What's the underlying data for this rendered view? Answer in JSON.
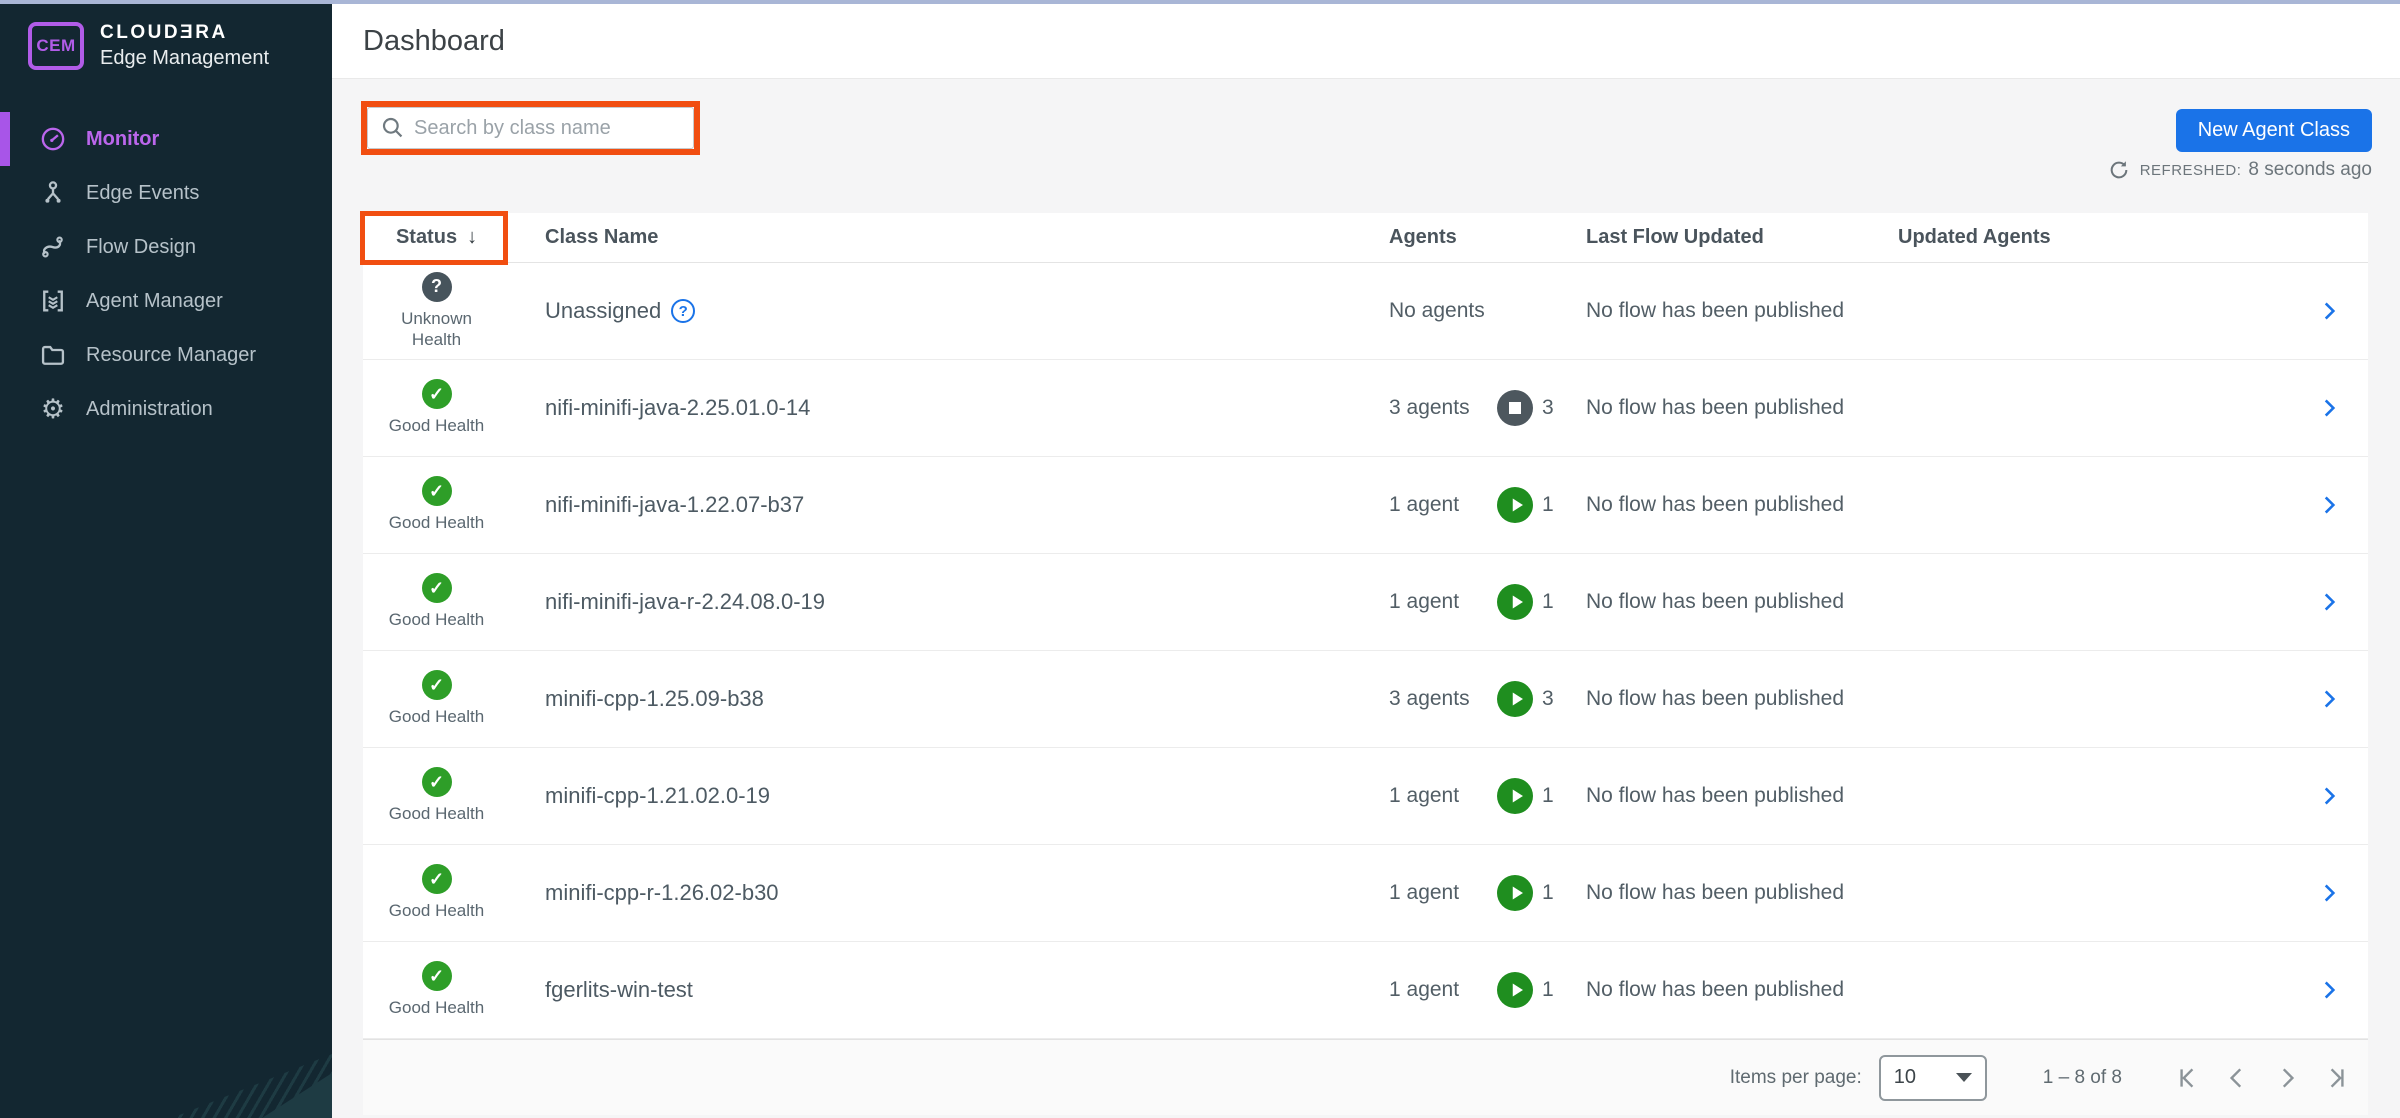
{
  "brand": {
    "badge": "CEM",
    "line1": "CLOUDƎRA",
    "line2": "Edge Management"
  },
  "sidebar": {
    "items": [
      {
        "label": "Monitor",
        "icon": "gauge-icon",
        "active": true
      },
      {
        "label": "Edge Events",
        "icon": "edge-events-icon",
        "active": false
      },
      {
        "label": "Flow Design",
        "icon": "flow-design-icon",
        "active": false
      },
      {
        "label": "Agent Manager",
        "icon": "agent-manager-icon",
        "active": false
      },
      {
        "label": "Resource Manager",
        "icon": "folder-icon",
        "active": false
      },
      {
        "label": "Administration",
        "icon": "gear-icon",
        "active": false
      }
    ]
  },
  "header": {
    "title": "Dashboard"
  },
  "toolbar": {
    "search_placeholder": "Search by class name",
    "new_agent_class_label": "New Agent Class",
    "refreshed_label": "REFRESHED:",
    "refreshed_value": "8 seconds ago"
  },
  "table": {
    "columns": {
      "status": "Status",
      "class_name": "Class Name",
      "agents": "Agents",
      "last_flow_updated": "Last Flow Updated",
      "updated_agents": "Updated Agents"
    },
    "sort": {
      "column": "Status",
      "direction": "descending"
    },
    "rows": [
      {
        "health": "unknown",
        "health_label": "Unknown Health",
        "class_name": "Unassigned",
        "help": true,
        "agents_text": "No agents",
        "badge": null,
        "flow": "No flow has been published",
        "updated_agents": ""
      },
      {
        "health": "good",
        "health_label": "Good Health",
        "class_name": "nifi-minifi-java-2.25.01.0-14",
        "help": false,
        "agents_text": "3 agents",
        "badge": {
          "type": "stopped",
          "count": "3"
        },
        "flow": "No flow has been published",
        "updated_agents": ""
      },
      {
        "health": "good",
        "health_label": "Good Health",
        "class_name": "nifi-minifi-java-1.22.07-b37",
        "help": false,
        "agents_text": "1 agent",
        "badge": {
          "type": "running",
          "count": "1"
        },
        "flow": "No flow has been published",
        "updated_agents": ""
      },
      {
        "health": "good",
        "health_label": "Good Health",
        "class_name": "nifi-minifi-java-r-2.24.08.0-19",
        "help": false,
        "agents_text": "1 agent",
        "badge": {
          "type": "running",
          "count": "1"
        },
        "flow": "No flow has been published",
        "updated_agents": ""
      },
      {
        "health": "good",
        "health_label": "Good Health",
        "class_name": "minifi-cpp-1.25.09-b38",
        "help": false,
        "agents_text": "3 agents",
        "badge": {
          "type": "running",
          "count": "3"
        },
        "flow": "No flow has been published",
        "updated_agents": ""
      },
      {
        "health": "good",
        "health_label": "Good Health",
        "class_name": "minifi-cpp-1.21.02.0-19",
        "help": false,
        "agents_text": "1 agent",
        "badge": {
          "type": "running",
          "count": "1"
        },
        "flow": "No flow has been published",
        "updated_agents": ""
      },
      {
        "health": "good",
        "health_label": "Good Health",
        "class_name": "minifi-cpp-r-1.26.02-b30",
        "help": false,
        "agents_text": "1 agent",
        "badge": {
          "type": "running",
          "count": "1"
        },
        "flow": "No flow has been published",
        "updated_agents": ""
      },
      {
        "health": "good",
        "health_label": "Good Health",
        "class_name": "fgerlits-win-test",
        "help": false,
        "agents_text": "1 agent",
        "badge": {
          "type": "running",
          "count": "1"
        },
        "flow": "No flow has been published",
        "updated_agents": ""
      }
    ]
  },
  "pagination": {
    "items_per_page_label": "Items per page:",
    "items_per_page_value": "10",
    "range_text": "1 – 8 of 8"
  },
  "icons": {
    "sort_desc": "↓",
    "question": "?",
    "check": "✓",
    "gear": "⚙"
  },
  "colors": {
    "accent_blue": "#1a73e8",
    "good_green": "#2e9e28",
    "annotation_orange": "#f14e11",
    "sidebar_bg": "#132731",
    "active_purple": "#bb66ec"
  }
}
